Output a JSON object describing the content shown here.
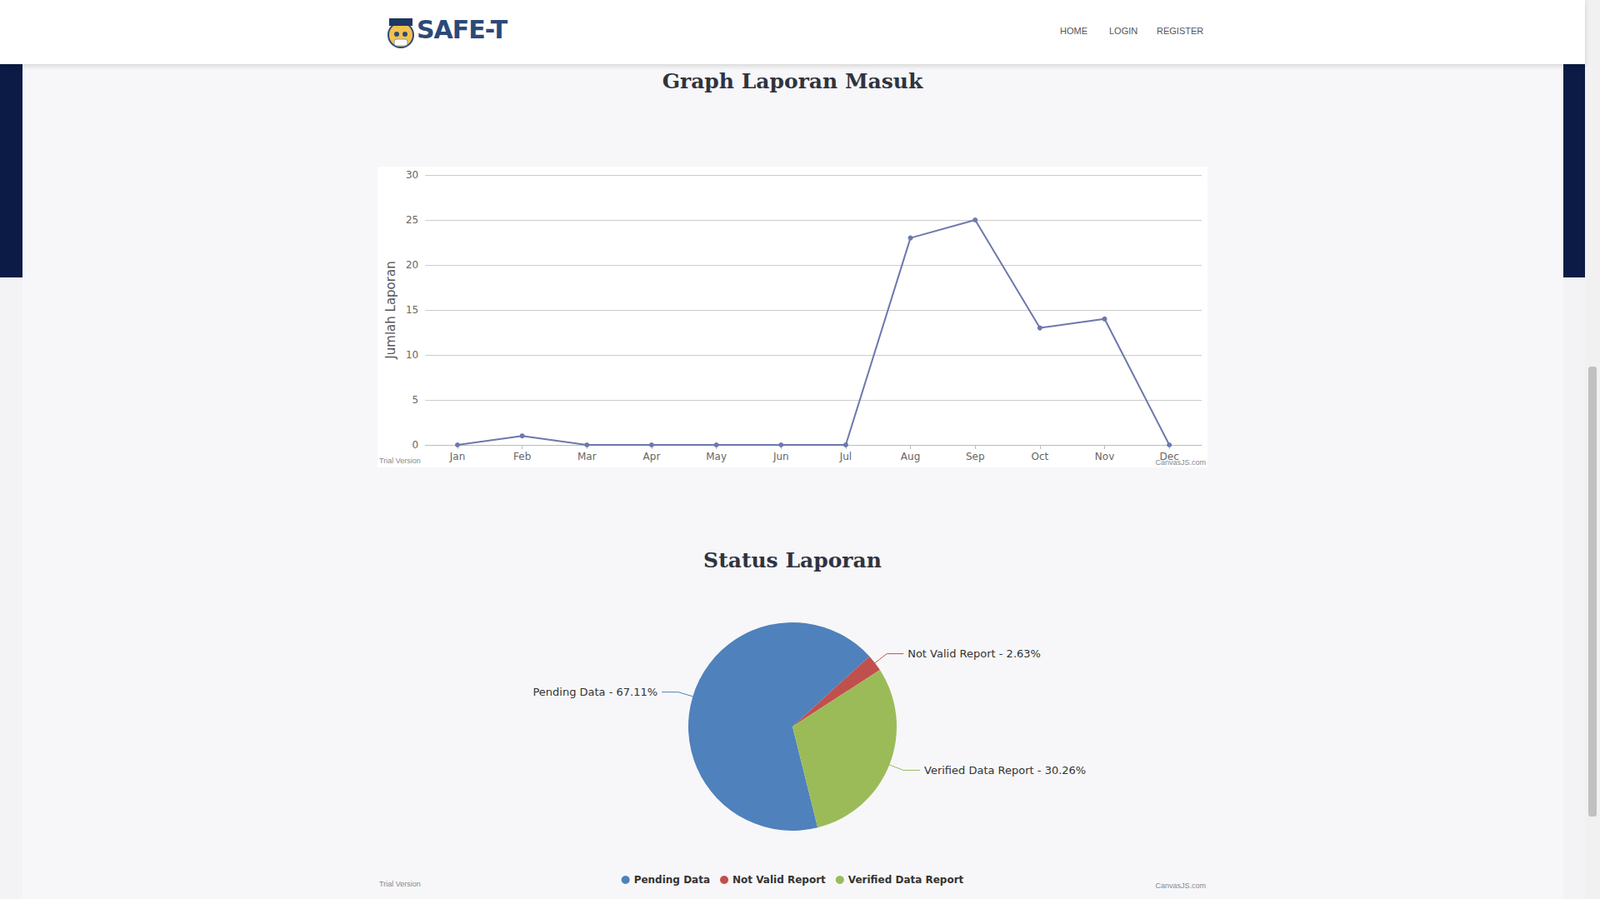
{
  "page": {
    "logo": "SAFE-T",
    "nav": [
      "HOME",
      "LOGIN",
      "REGISTER"
    ]
  },
  "chart_data": [
    {
      "type": "line",
      "title": "Graph Laporan Masuk",
      "y_label": "Jumlah Laporan",
      "categories": [
        "Jan",
        "Feb",
        "Mar",
        "Apr",
        "May",
        "Jun",
        "Jul",
        "Aug",
        "Sep",
        "Oct",
        "Nov",
        "Dec"
      ],
      "values": [
        0,
        1,
        0,
        0,
        0,
        0,
        0,
        23,
        25,
        13,
        14,
        0
      ],
      "color": "#6d78ad",
      "marker": "circle",
      "ylim": [
        0,
        30
      ],
      "yticks": [
        0,
        5,
        10,
        15,
        20,
        25,
        30
      ],
      "grid": true,
      "annotations": [
        "Trial Version",
        "CanvasJS.com"
      ]
    },
    {
      "type": "pie",
      "title": "Status Laporan",
      "categories": [
        "Pending Data",
        "Not Valid Report",
        "Verified Data Report"
      ],
      "values": [
        67.11,
        2.63,
        30.26
      ],
      "value_labels": [
        "Pending Data - 67.11%",
        "Not Valid Report - 2.63%",
        "Verified Data Report - 30.26%"
      ],
      "colors": [
        "#4f81bc",
        "#c0504e",
        "#9bbb58"
      ],
      "data_labels": true,
      "legend": "bottom",
      "annotations": [
        "Trial Version",
        "CanvasJS.com"
      ]
    }
  ]
}
